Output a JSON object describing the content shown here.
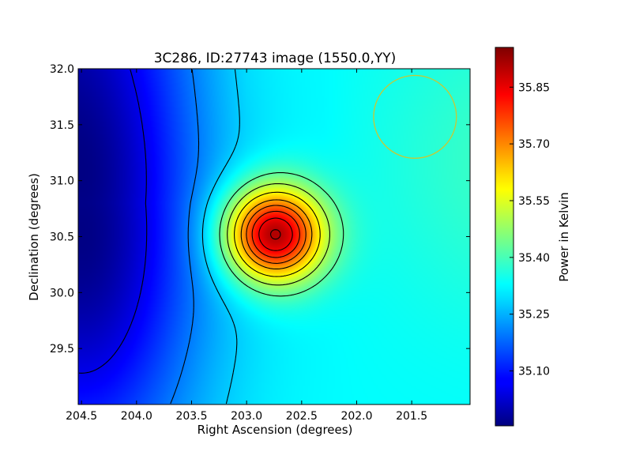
{
  "chart_data": {
    "type": "heatmap",
    "title": "3C286, ID:27743 image (1550.0,YY)",
    "xlabel": "Right Ascension (degrees)",
    "ylabel": "Declination (degrees)",
    "colorbar_label": "Power in Kelvin",
    "xlim": [
      204.53,
      200.97
    ],
    "ylim": [
      29.0,
      32.0
    ],
    "x_ticks": [
      204.5,
      204.0,
      203.5,
      203.0,
      202.5,
      202.0,
      201.5
    ],
    "x_tick_labels": [
      "204.5",
      "204.0",
      "203.5",
      "203.0",
      "202.5",
      "202.0",
      "201.5"
    ],
    "y_ticks": [
      29.5,
      30.0,
      30.5,
      31.0,
      31.5,
      32.0
    ],
    "y_tick_labels": [
      "29.5",
      "30.0",
      "30.5",
      "31.0",
      "31.5",
      "32.0"
    ],
    "colorbar_range": [
      34.955,
      35.955
    ],
    "colorbar_ticks": [
      35.1,
      35.25,
      35.4,
      35.55,
      35.7,
      35.85
    ],
    "colorbar_tick_labels": [
      "35.10",
      "35.25",
      "35.40",
      "35.55",
      "35.70",
      "35.85"
    ],
    "colormap": "jet",
    "peak": {
      "x": 202.75,
      "y": 30.52,
      "value": 35.93
    },
    "minimum": {
      "x": 204.5,
      "y": 30.55,
      "value": 34.96
    },
    "beam_circle": {
      "center_x": 201.47,
      "center_y": 31.57,
      "radius_deg": 0.37,
      "color": "#c8c832"
    },
    "contour_color": "#000000",
    "grid": false
  }
}
